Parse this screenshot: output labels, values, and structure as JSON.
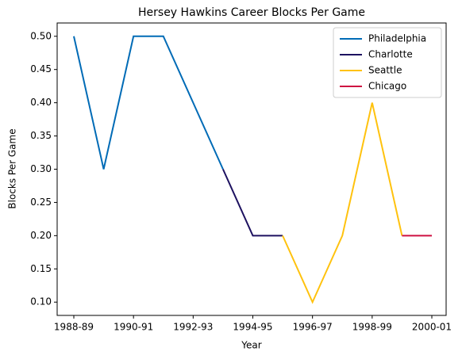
{
  "chart_data": {
    "type": "line",
    "title": "Hersey Hawkins Career Blocks Per Game",
    "xlabel": "Year",
    "ylabel": "Blocks Per Game",
    "categories": [
      "1988-89",
      null,
      "1990-91",
      null,
      "1992-93",
      null,
      "1994-95",
      null,
      "1996-97",
      null,
      "1998-99",
      null,
      "2000-01"
    ],
    "series": [
      {
        "name": "Philadelphia",
        "color": "#006bb6",
        "values": [
          0.5,
          0.3,
          0.5,
          0.5,
          0.4,
          0.3,
          null,
          null,
          null,
          null,
          null,
          null,
          null
        ]
      },
      {
        "name": "Charlotte",
        "color": "#1d1160",
        "values": [
          null,
          null,
          null,
          null,
          null,
          0.3,
          0.2,
          0.2,
          null,
          null,
          null,
          null,
          null
        ]
      },
      {
        "name": "Seattle",
        "color": "#ffc20e",
        "values": [
          null,
          null,
          null,
          null,
          null,
          null,
          null,
          0.2,
          0.1,
          0.2,
          0.4,
          0.2,
          null
        ]
      },
      {
        "name": "Chicago",
        "color": "#ce1141",
        "values": [
          null,
          null,
          null,
          null,
          null,
          null,
          null,
          null,
          null,
          null,
          null,
          0.2,
          0.2
        ]
      }
    ],
    "ylim": [
      0.08,
      0.52
    ],
    "yticks": [
      {
        "value": 0.1,
        "label": "0.10"
      },
      {
        "value": 0.15,
        "label": "0.15"
      },
      {
        "value": 0.2,
        "label": "0.20"
      },
      {
        "value": 0.25,
        "label": "0.25"
      },
      {
        "value": 0.3,
        "label": "0.30"
      },
      {
        "value": 0.35,
        "label": "0.35"
      },
      {
        "value": 0.4,
        "label": "0.40"
      },
      {
        "value": 0.45,
        "label": "0.45"
      },
      {
        "value": 0.5,
        "label": "0.50"
      }
    ],
    "legend": "upper right"
  }
}
